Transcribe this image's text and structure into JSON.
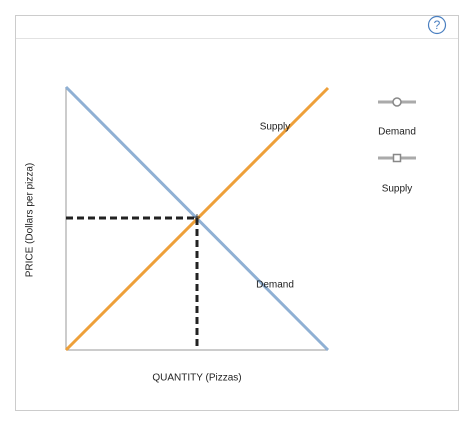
{
  "help": "?",
  "chart_data": {
    "type": "line",
    "x_label": "QUANTITY (Pizzas)",
    "y_label": "PRICE (Dollars per pizza)",
    "series": [
      {
        "name": "Demand",
        "color": "#8fb0d4"
      },
      {
        "name": "Supply",
        "color": "#eea03a"
      }
    ],
    "annotations": [
      "Supply",
      "Demand"
    ]
  }
}
